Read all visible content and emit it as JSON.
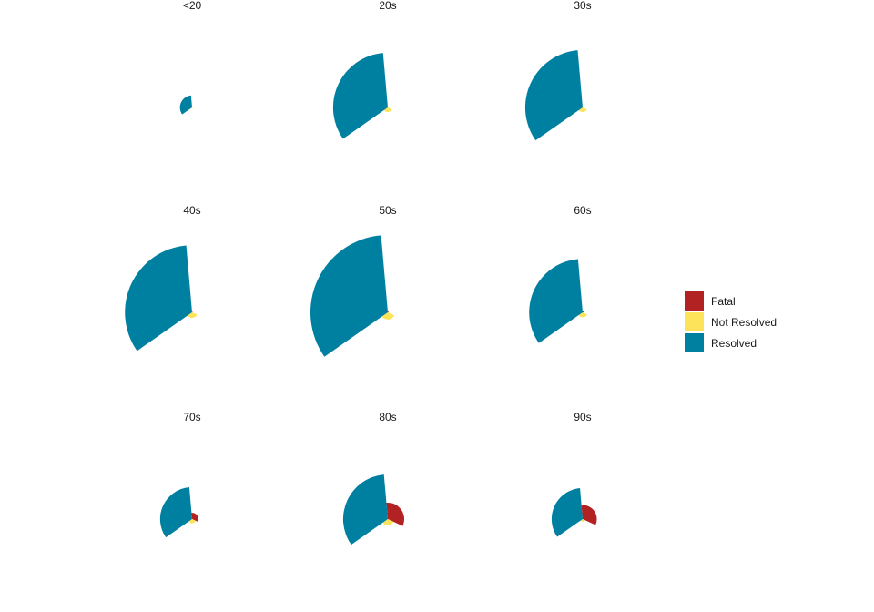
{
  "chart_data": {
    "type": "polar-area",
    "facet_by": "age group",
    "categories": [
      "Fatal",
      "Not Resolved",
      "Resolved"
    ],
    "colors": {
      "Fatal": "#b22222",
      "Not Resolved": "#fde35a",
      "Resolved": "#0080a0"
    },
    "legend": {
      "position": "right",
      "items": [
        {
          "label": "Fatal",
          "color": "#b22222"
        },
        {
          "label": "Not Resolved",
          "color": "#fde35a"
        },
        {
          "label": "Resolved",
          "color": "#0080a0"
        }
      ]
    },
    "panels": [
      {
        "title": "<20",
        "values": {
          "Fatal": 0,
          "Not Resolved": 1,
          "Resolved": 170
        }
      },
      {
        "title": "20s",
        "values": {
          "Fatal": 0,
          "Not Resolved": 24,
          "Resolved": 3450
        }
      },
      {
        "title": "30s",
        "values": {
          "Fatal": 0.5,
          "Not Resolved": 24,
          "Resolved": 3800
        }
      },
      {
        "title": "40s",
        "values": {
          "Fatal": 0.5,
          "Not Resolved": 35,
          "Resolved": 5200
        }
      },
      {
        "title": "50s",
        "values": {
          "Fatal": 1,
          "Not Resolved": 60,
          "Resolved": 6900
        }
      },
      {
        "title": "60s",
        "values": {
          "Fatal": 2,
          "Not Resolved": 28,
          "Resolved": 3300
        }
      },
      {
        "title": "70s",
        "values": {
          "Fatal": 45,
          "Not Resolved": 20,
          "Resolved": 1180
        }
      },
      {
        "title": "80s",
        "values": {
          "Fatal": 310,
          "Not Resolved": 45,
          "Resolved": 2300
        }
      },
      {
        "title": "90s",
        "values": {
          "Fatal": 230,
          "Not Resolved": 8,
          "Resolved": 1110
        }
      }
    ]
  }
}
